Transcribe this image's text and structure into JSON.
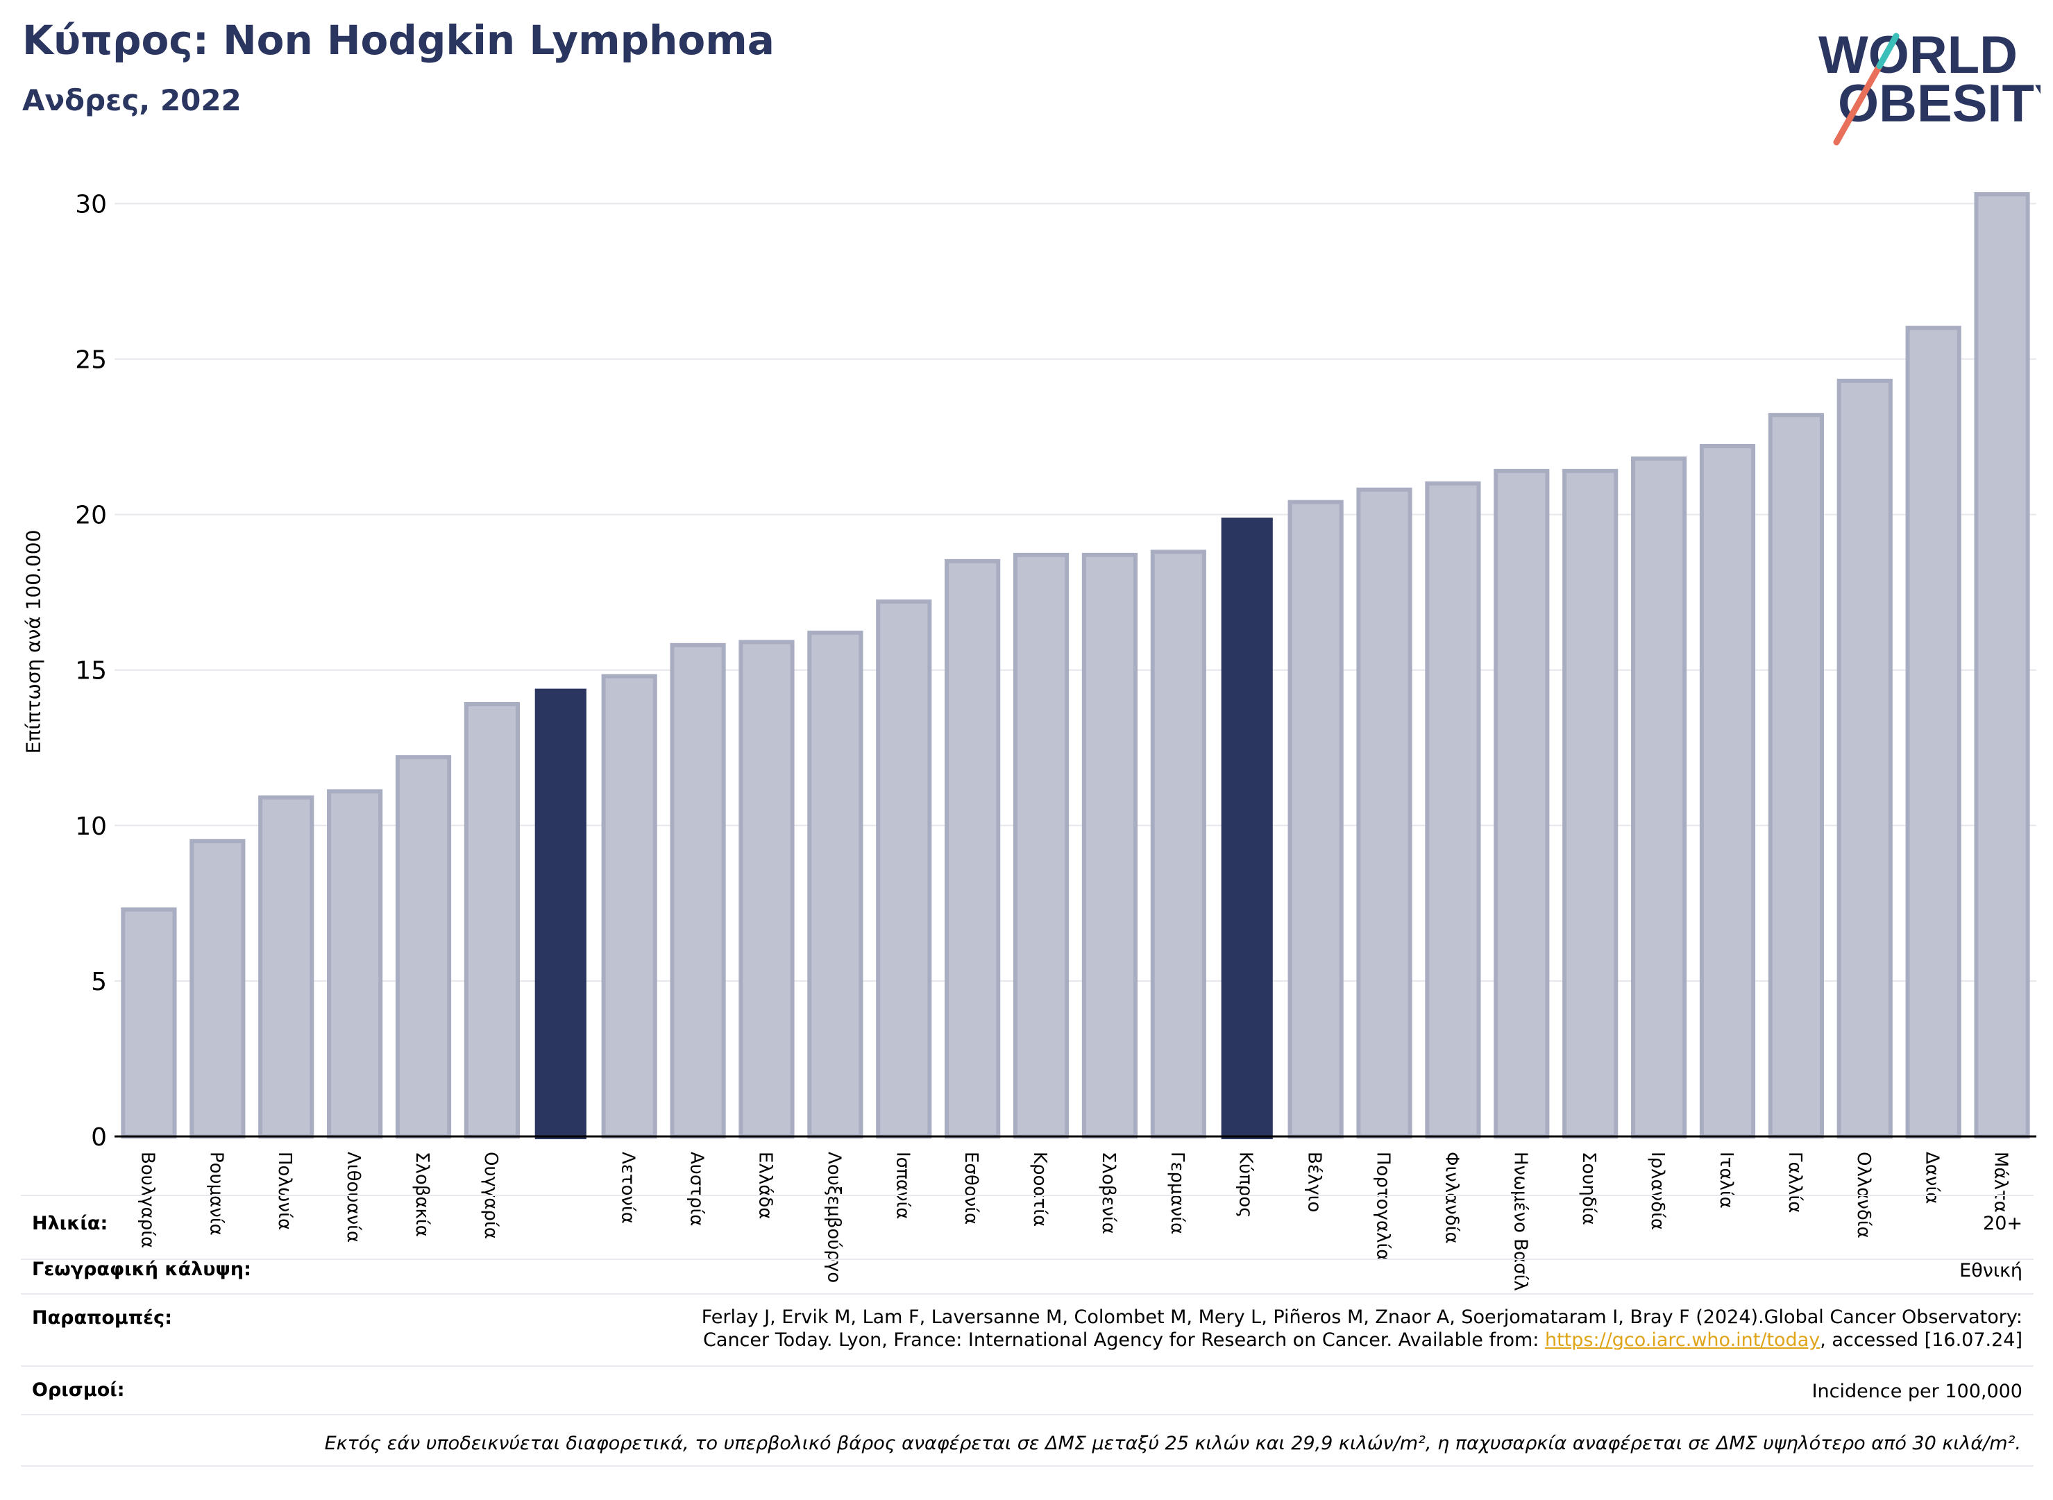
{
  "title": "Κύπρος: Non Hodgkin Lymphoma",
  "subtitle": "Ανδρες, 2022",
  "logo": {
    "line1": "WORLD",
    "line2": "OBESITY",
    "accent_colors": [
      "#e8705a",
      "#3bbfb8"
    ]
  },
  "colors": {
    "bar": "#bfc2d0",
    "bar_stroke": "#a8adc2",
    "highlight": "#2a3560",
    "axis": "#000000",
    "grid": "#e6e6ec"
  },
  "chart_data": {
    "type": "bar",
    "ylabel": "Επίπτωση ανά 100.000",
    "ylim": [
      0,
      31
    ],
    "yticks": [
      0,
      5,
      10,
      15,
      20,
      25,
      30
    ],
    "grid": true,
    "categories": [
      "Βουλγαρία",
      "Ρουμανία",
      "Πολωνία",
      "Λιθουανία",
      "Σλοβακία",
      "Ουγγαρία",
      "",
      "Λετονία",
      "Αυστρία",
      "Ελλάδα",
      "Λουξεμβούργο",
      "Ισπανία",
      "Εσθονία",
      "Κροατία",
      "Σλοβενία",
      "Γερμανία",
      "Κύπρος",
      "Βέλγιο",
      "Πορτογαλία",
      "Φινλανδία",
      "Ηνωμένο Βασίλειο",
      "Σουηδία",
      "Ιρλανδία",
      "Ιταλία",
      "Γαλλία",
      "Ολλανδία",
      "Δανία",
      "Μάλτα"
    ],
    "values": [
      7.3,
      9.5,
      10.9,
      11.1,
      12.2,
      13.9,
      14.4,
      14.8,
      15.8,
      15.9,
      16.2,
      17.2,
      18.5,
      18.7,
      18.7,
      18.8,
      19.9,
      20.4,
      20.8,
      21.0,
      21.4,
      21.4,
      21.8,
      22.2,
      23.2,
      24.3,
      26.0,
      30.3
    ],
    "highlighted": [
      6,
      16
    ]
  },
  "meta": {
    "age_label": "Ηλικία:",
    "age_value": "20+",
    "coverage_label": "Γεωγραφική κάλυψη:",
    "coverage_value": "Εθνική",
    "refs_label": "Παραπομπές:",
    "refs_line1": "Ferlay J, Ervik M, Lam F, Laversanne M, Colombet M, Mery L, Piñeros M, Znaor A, Soerjomataram I, Bray F (2024).Global Cancer Observatory:",
    "refs_line2_pre": "Cancer Today. Lyon, France: International Agency for Research on Cancer. Available from: ",
    "refs_link": "https://gco.iarc.who.int/today",
    "refs_line2_post": ", accessed [16.07.24]",
    "defs_label": "Ορισμοί:",
    "defs_value": "Incidence per 100,000"
  },
  "footnote": "Εκτός εάν υποδεικνύεται διαφορετικά, το υπερβολικό βάρος αναφέρεται σε ΔΜΣ μεταξύ 25 κιλών και 29,9 κιλών/m², η παχυσαρκία αναφέρεται σε ΔΜΣ υψηλότερο από 30 κιλά/m²."
}
